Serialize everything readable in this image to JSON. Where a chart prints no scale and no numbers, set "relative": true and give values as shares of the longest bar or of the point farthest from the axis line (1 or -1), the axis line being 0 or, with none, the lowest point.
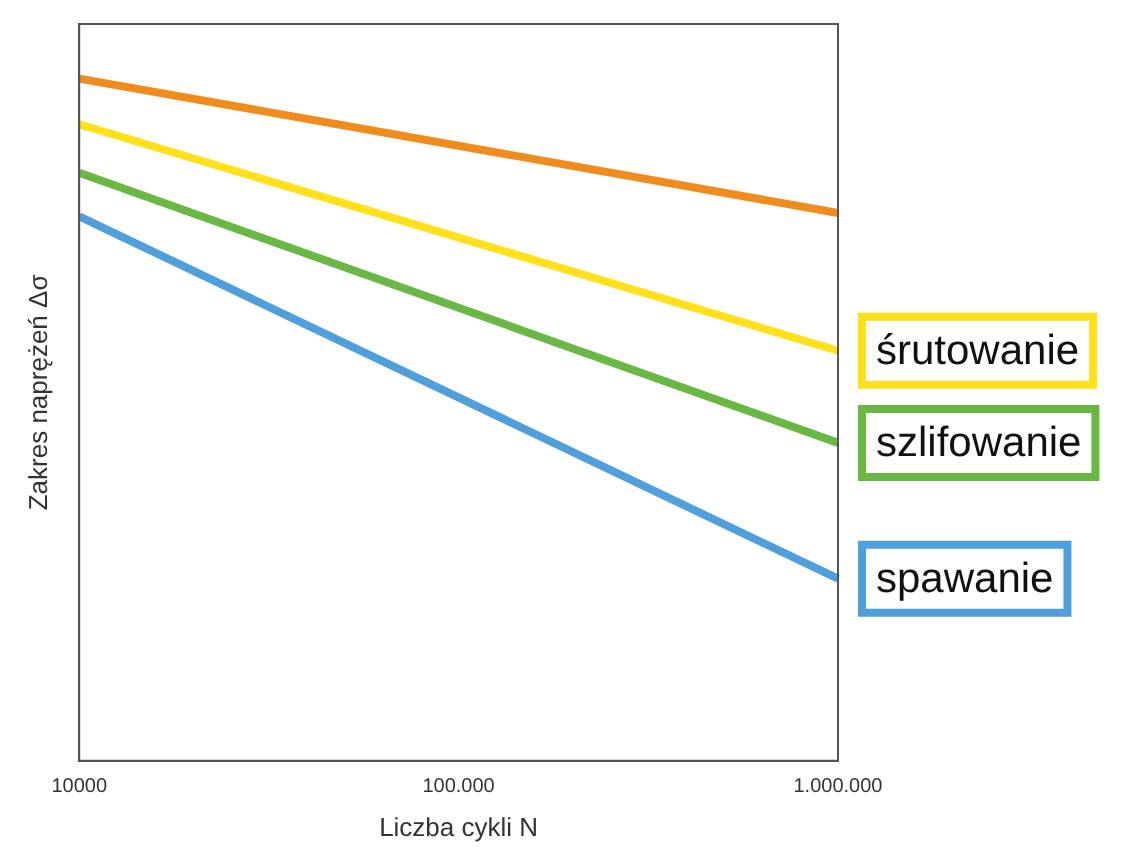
{
  "chart_data": {
    "type": "line",
    "xlabel": "Liczba cykli N",
    "ylabel": "Zakres naprężeń Δσ",
    "log": "x",
    "relative": true,
    "grid": false,
    "legend": false,
    "marker": "none",
    "line_style": "solid",
    "xlim": [
      10000,
      1000000
    ],
    "xticks": [
      10000,
      {
        "value": 100000,
        "label": "100.000"
      },
      {
        "value": 1000000,
        "label": "1.000.000"
      }
    ],
    "x": [
      10000,
      1000000
    ],
    "series": [
      {
        "color": "#f08c1e",
        "values": [
          1,
          0.803
        ]
      },
      {
        "name": "śrutowanie",
        "color": "#ffe01a",
        "values": [
          0.933,
          0.601
        ]
      },
      {
        "name": "szlifowanie",
        "color": "#6ab844",
        "values": [
          0.862,
          0.466
        ]
      },
      {
        "name": "spawanie",
        "color": "#4f9fdd",
        "values": [
          0.798,
          0.267
        ]
      }
    ]
  }
}
